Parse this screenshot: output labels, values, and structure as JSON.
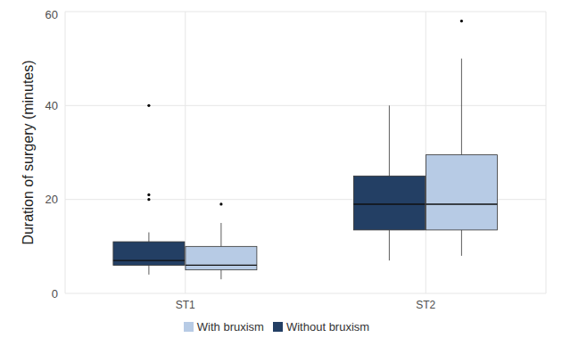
{
  "chart_data": {
    "type": "boxplot",
    "y_label": "Duration of surgery (minutes)",
    "categories": [
      "ST1",
      "ST2"
    ],
    "ylim": [
      0,
      60
    ],
    "yticks": [
      0,
      20,
      40,
      60
    ],
    "grid": true,
    "legend": "bottom",
    "series": [
      {
        "name": "Without bruxism",
        "color": "#233f64",
        "min": [
          4,
          7
        ],
        "q1": [
          6,
          13.5
        ],
        "median": [
          7,
          19
        ],
        "q3": [
          11,
          25
        ],
        "max": [
          13,
          40
        ],
        "outliers": [
          [
            20,
            21,
            40
          ],
          []
        ]
      },
      {
        "name": "With bruxism",
        "color": "#b7cbe5",
        "min": [
          3,
          8
        ],
        "q1": [
          5,
          13.5
        ],
        "median": [
          6,
          19
        ],
        "q3": [
          10,
          29.5
        ],
        "max": [
          15,
          50
        ],
        "outliers": [
          [
            19
          ],
          [
            58
          ]
        ]
      }
    ]
  }
}
